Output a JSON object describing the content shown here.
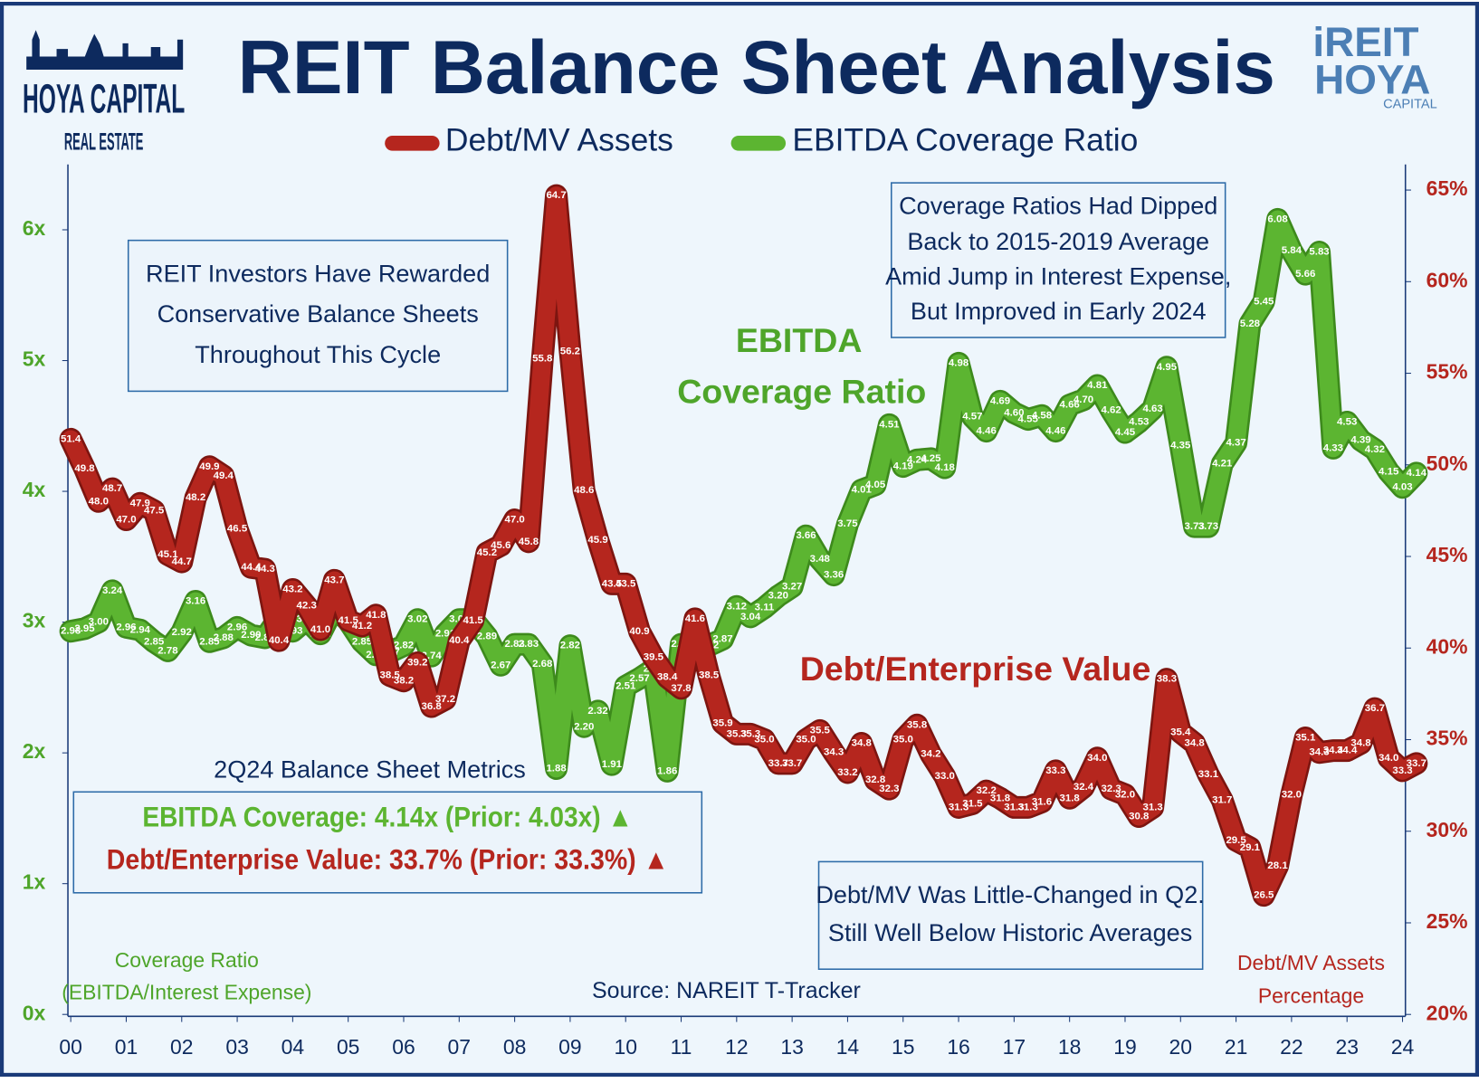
{
  "logos": {
    "left": [
      "HOYA CAPITAL",
      "REAL ESTATE"
    ],
    "right": [
      "iREIT",
      "HOYA",
      "CAPITAL"
    ]
  },
  "chart_data": {
    "type": "line",
    "title": "REIT Balance Sheet Analysis",
    "x": [
      0,
      0.25,
      0.5,
      0.75,
      1,
      1.25,
      1.5,
      1.75,
      2,
      2.25,
      2.5,
      2.75,
      3,
      3.25,
      3.5,
      3.75,
      4,
      4.25,
      4.5,
      4.75,
      5,
      5.25,
      5.5,
      5.75,
      6,
      6.25,
      6.5,
      6.75,
      7,
      7.25,
      7.5,
      7.75,
      8,
      8.25,
      8.5,
      8.75,
      9,
      9.25,
      9.5,
      9.75,
      10,
      10.25,
      10.5,
      10.75,
      11,
      11.25,
      11.5,
      11.75,
      12,
      12.25,
      12.5,
      12.75,
      13,
      13.25,
      13.5,
      13.75,
      14,
      14.25,
      14.5,
      14.75,
      15,
      15.25,
      15.5,
      15.75,
      16,
      16.25,
      16.5,
      16.75,
      17,
      17.25,
      17.5,
      17.75,
      18,
      18.25,
      18.5,
      18.75,
      19,
      19.25,
      19.5,
      19.75,
      20,
      20.25,
      20.5,
      20.75,
      21,
      21.25,
      21.5,
      21.75,
      22,
      22.25,
      22.5,
      22.75,
      23,
      23.25,
      23.5,
      23.75,
      24,
      24.25
    ],
    "xlim": [
      0,
      24.25
    ],
    "xticks": [
      {
        "value": 0,
        "label": "00"
      },
      {
        "value": 1,
        "label": "01"
      },
      {
        "value": 2,
        "label": "02"
      },
      {
        "value": 3,
        "label": "03"
      },
      {
        "value": 4,
        "label": "04"
      },
      {
        "value": 5,
        "label": "05"
      },
      {
        "value": 6,
        "label": "06"
      },
      {
        "value": 7,
        "label": "07"
      },
      {
        "value": 8,
        "label": "08"
      },
      {
        "value": 9,
        "label": "09"
      },
      10,
      11,
      12,
      13,
      14,
      15,
      16,
      17,
      18,
      19,
      20,
      21,
      22,
      23,
      24
    ],
    "ylim": [
      0,
      6.5
    ],
    "yticks": [
      {
        "value": 0,
        "label": "0x"
      },
      {
        "value": 1,
        "label": "1x"
      },
      {
        "value": 2,
        "label": "2x"
      },
      {
        "value": 3,
        "label": "3x"
      },
      {
        "value": 4,
        "label": "4x"
      },
      {
        "value": 5,
        "label": "5x"
      },
      {
        "value": 6,
        "label": "6x"
      }
    ],
    "y2lim": [
      20,
      66.4
    ],
    "y2ticks": [
      {
        "value": 20,
        "label": "20%"
      },
      {
        "value": 25,
        "label": "25%"
      },
      {
        "value": 30,
        "label": "30%"
      },
      {
        "value": 35,
        "label": "35%"
      },
      {
        "value": 40,
        "label": "40%"
      },
      {
        "value": 45,
        "label": "45%"
      },
      {
        "value": 50,
        "label": "50%"
      },
      {
        "value": 55,
        "label": "55%"
      },
      {
        "value": 60,
        "label": "60%"
      },
      {
        "value": 65,
        "label": "65%"
      }
    ],
    "series": [
      {
        "name": "EBITDA Coverage Ratio",
        "color": "#5cb531",
        "axis": "y",
        "values": [
          2.93,
          2.95,
          3,
          3.24,
          2.96,
          2.94,
          2.85,
          2.78,
          2.92,
          3.16,
          2.85,
          2.88,
          2.96,
          2.9,
          2.88,
          3.03,
          2.93,
          3.02,
          2.91,
          3.12,
          3.01,
          2.85,
          2.75,
          2.77,
          2.82,
          3.02,
          2.74,
          2.91,
          3.02,
          3.02,
          2.89,
          2.67,
          2.83,
          2.83,
          2.68,
          1.88,
          2.82,
          2.2,
          2.32,
          1.91,
          2.51,
          2.57,
          2.64,
          1.86,
          2.83,
          2.75,
          2.82,
          2.87,
          3.12,
          3.04,
          3.11,
          3.2,
          3.27,
          3.66,
          3.48,
          3.36,
          3.75,
          4.01,
          4.05,
          4.51,
          4.19,
          4.24,
          4.25,
          4.18,
          4.98,
          4.57,
          4.46,
          4.69,
          4.6,
          4.55,
          4.58,
          4.46,
          4.66,
          4.7,
          4.81,
          4.62,
          4.45,
          4.53,
          4.63,
          4.95,
          4.35,
          3.73,
          3.73,
          4.21,
          4.37,
          5.28,
          5.45,
          6.08,
          5.84,
          5.66,
          5.83,
          4.33,
          4.53,
          4.39,
          4.32,
          4.15,
          4.03,
          4.14
        ],
        "value_labels": [
          "2.93",
          "2.95",
          "3.00",
          "3.24",
          "2.96",
          "2.94",
          "2.85",
          "2.78",
          "2.92",
          "3.16",
          "2.85",
          "2.88",
          "2.96",
          "2.90",
          "2.88",
          "3.03",
          "2.93",
          "3.02",
          "2.91",
          "3.12",
          "3.01",
          "2.85",
          "2.75",
          "2.77",
          "2.82",
          "3.02",
          "2.74",
          "2.91",
          "3.02",
          "3.02",
          "2.89",
          "2.67",
          "2.83",
          "2.83",
          "2.68",
          "1.88",
          "2.82",
          "2.20",
          "2.32",
          "1.91",
          "2.51",
          "2.57",
          "2.64",
          "1.86",
          "2.83",
          "2.75",
          "2.82",
          "2.87",
          "3.12",
          "3.04",
          "3.11",
          "3.20",
          "3.27",
          "3.66",
          "3.48",
          "3.36",
          "3.75",
          "4.01",
          "4.05",
          "4.51",
          "4.19",
          "4.24",
          "4.25",
          "4.18",
          "4.98",
          "4.57",
          "4.46",
          "4.69",
          "4.60",
          "4.55",
          "4.58",
          "4.46",
          "4.66",
          "4.70",
          "4.81",
          "4.62",
          "4.45",
          "4.53",
          "4.63",
          "4.95",
          "4.35",
          "3.73",
          "3.73",
          "4.21",
          "4.37",
          "5.28",
          "5.45",
          "6.08",
          "5.84",
          "5.66",
          "5.83",
          "4.33",
          "4.53",
          "4.39",
          "4.32",
          "4.15",
          "4.03",
          "4.14"
        ]
      },
      {
        "name": "Debt/MV Assets",
        "color": "#b5261e",
        "axis": "y2",
        "values": [
          51.4,
          49.8,
          48,
          48.7,
          47,
          47.9,
          47.5,
          45.1,
          44.7,
          48.2,
          49.9,
          49.4,
          46.5,
          44.4,
          44.3,
          40.4,
          43.2,
          42.3,
          41,
          43.7,
          41.5,
          41.2,
          41.8,
          38.5,
          38.2,
          39.2,
          36.8,
          37.2,
          40.4,
          41.5,
          45.2,
          45.6,
          47,
          45.8,
          55.8,
          64.7,
          56.2,
          48.6,
          45.9,
          43.5,
          43.5,
          40.9,
          39.5,
          38.4,
          37.8,
          41.6,
          38.5,
          35.9,
          35.3,
          35.3,
          35,
          33.7,
          33.7,
          35,
          35.5,
          34.3,
          33.2,
          34.8,
          32.8,
          32.3,
          35,
          35.8,
          34.2,
          33,
          31.3,
          31.5,
          32.2,
          31.8,
          31.3,
          31.3,
          31.6,
          33.3,
          31.8,
          32.4,
          34,
          32.3,
          32,
          30.8,
          31.3,
          38.3,
          35.4,
          34.8,
          33.1,
          31.7,
          29.5,
          29.1,
          26.5,
          28.1,
          32,
          35.1,
          34.3,
          34.4,
          34.4,
          34.8,
          36.7,
          34,
          33.3,
          33.7
        ],
        "value_labels": [
          "51.4",
          "49.8",
          "48.0",
          "48.7",
          "47.0",
          "47.9",
          "47.5",
          "45.1",
          "44.7",
          "48.2",
          "49.9",
          "49.4",
          "46.5",
          "44.4",
          "44.3",
          "40.4",
          "43.2",
          "42.3",
          "41.0",
          "43.7",
          "41.5",
          "41.2",
          "41.8",
          "38.5",
          "38.2",
          "39.2",
          "36.8",
          "37.2",
          "40.4",
          "41.5",
          "45.2",
          "45.6",
          "47.0",
          "45.8",
          "55.8",
          "64.7",
          "56.2",
          "48.6",
          "45.9",
          "43.5",
          "43.5",
          "40.9",
          "39.5",
          "38.4",
          "37.8",
          "41.6",
          "38.5",
          "35.9",
          "35.3",
          "35.3",
          "35.0",
          "33.7",
          "33.7",
          "35.0",
          "35.5",
          "34.3",
          "33.2",
          "34.8",
          "32.8",
          "32.3",
          "35.0",
          "35.8",
          "34.2",
          "33.0",
          "31.3",
          "31.5",
          "32.2",
          "31.8",
          "31.3",
          "31.3",
          "31.6",
          "33.3",
          "31.8",
          "32.4",
          "34.0",
          "32.3",
          "32.0",
          "30.8",
          "31.3",
          "38.3",
          "35.4",
          "34.8",
          "33.1",
          "31.7",
          "29.5",
          "29.1",
          "26.5",
          "28.1",
          "32.0",
          "35.1",
          "34.3",
          "34.4",
          "34.4",
          "34.8",
          "36.7",
          "34.0",
          "33.3",
          "33.7"
        ]
      }
    ],
    "y_label": [
      "Coverage Ratio",
      "(EBITDA/Interest Expense)"
    ],
    "y2_label": [
      "Debt/MV Assets",
      "Percentage"
    ],
    "source": "Source: NAREIT T-Tracker",
    "series_labels": {
      "coverage": [
        "EBITDA",
        "Coverage Ratio"
      ],
      "debt": "Debt/Enterprise Value"
    },
    "notes": [
      {
        "lines": [
          "REIT Investors Have Rewarded",
          "Conservative Balance Sheets",
          "Throughout This Cycle"
        ]
      },
      {
        "lines": [
          "Coverage Ratios Had Dipped",
          "Back to 2015-2019 Average",
          "Amid Jump in Interest Expense,",
          "But Improved in Early 2024"
        ]
      },
      {
        "heading": "2Q24 Balance Sheet Metrics",
        "lines": [
          "EBITDA Coverage: 4.14x (Prior: 4.03x) ▲",
          "Debt/Enterprise Value: 33.7% (Prior: 33.3%) ▲"
        ]
      },
      {
        "lines": [
          "Debt/MV Was Little-Changed in Q2.",
          "Still Well Below Historic Averages"
        ]
      }
    ]
  }
}
